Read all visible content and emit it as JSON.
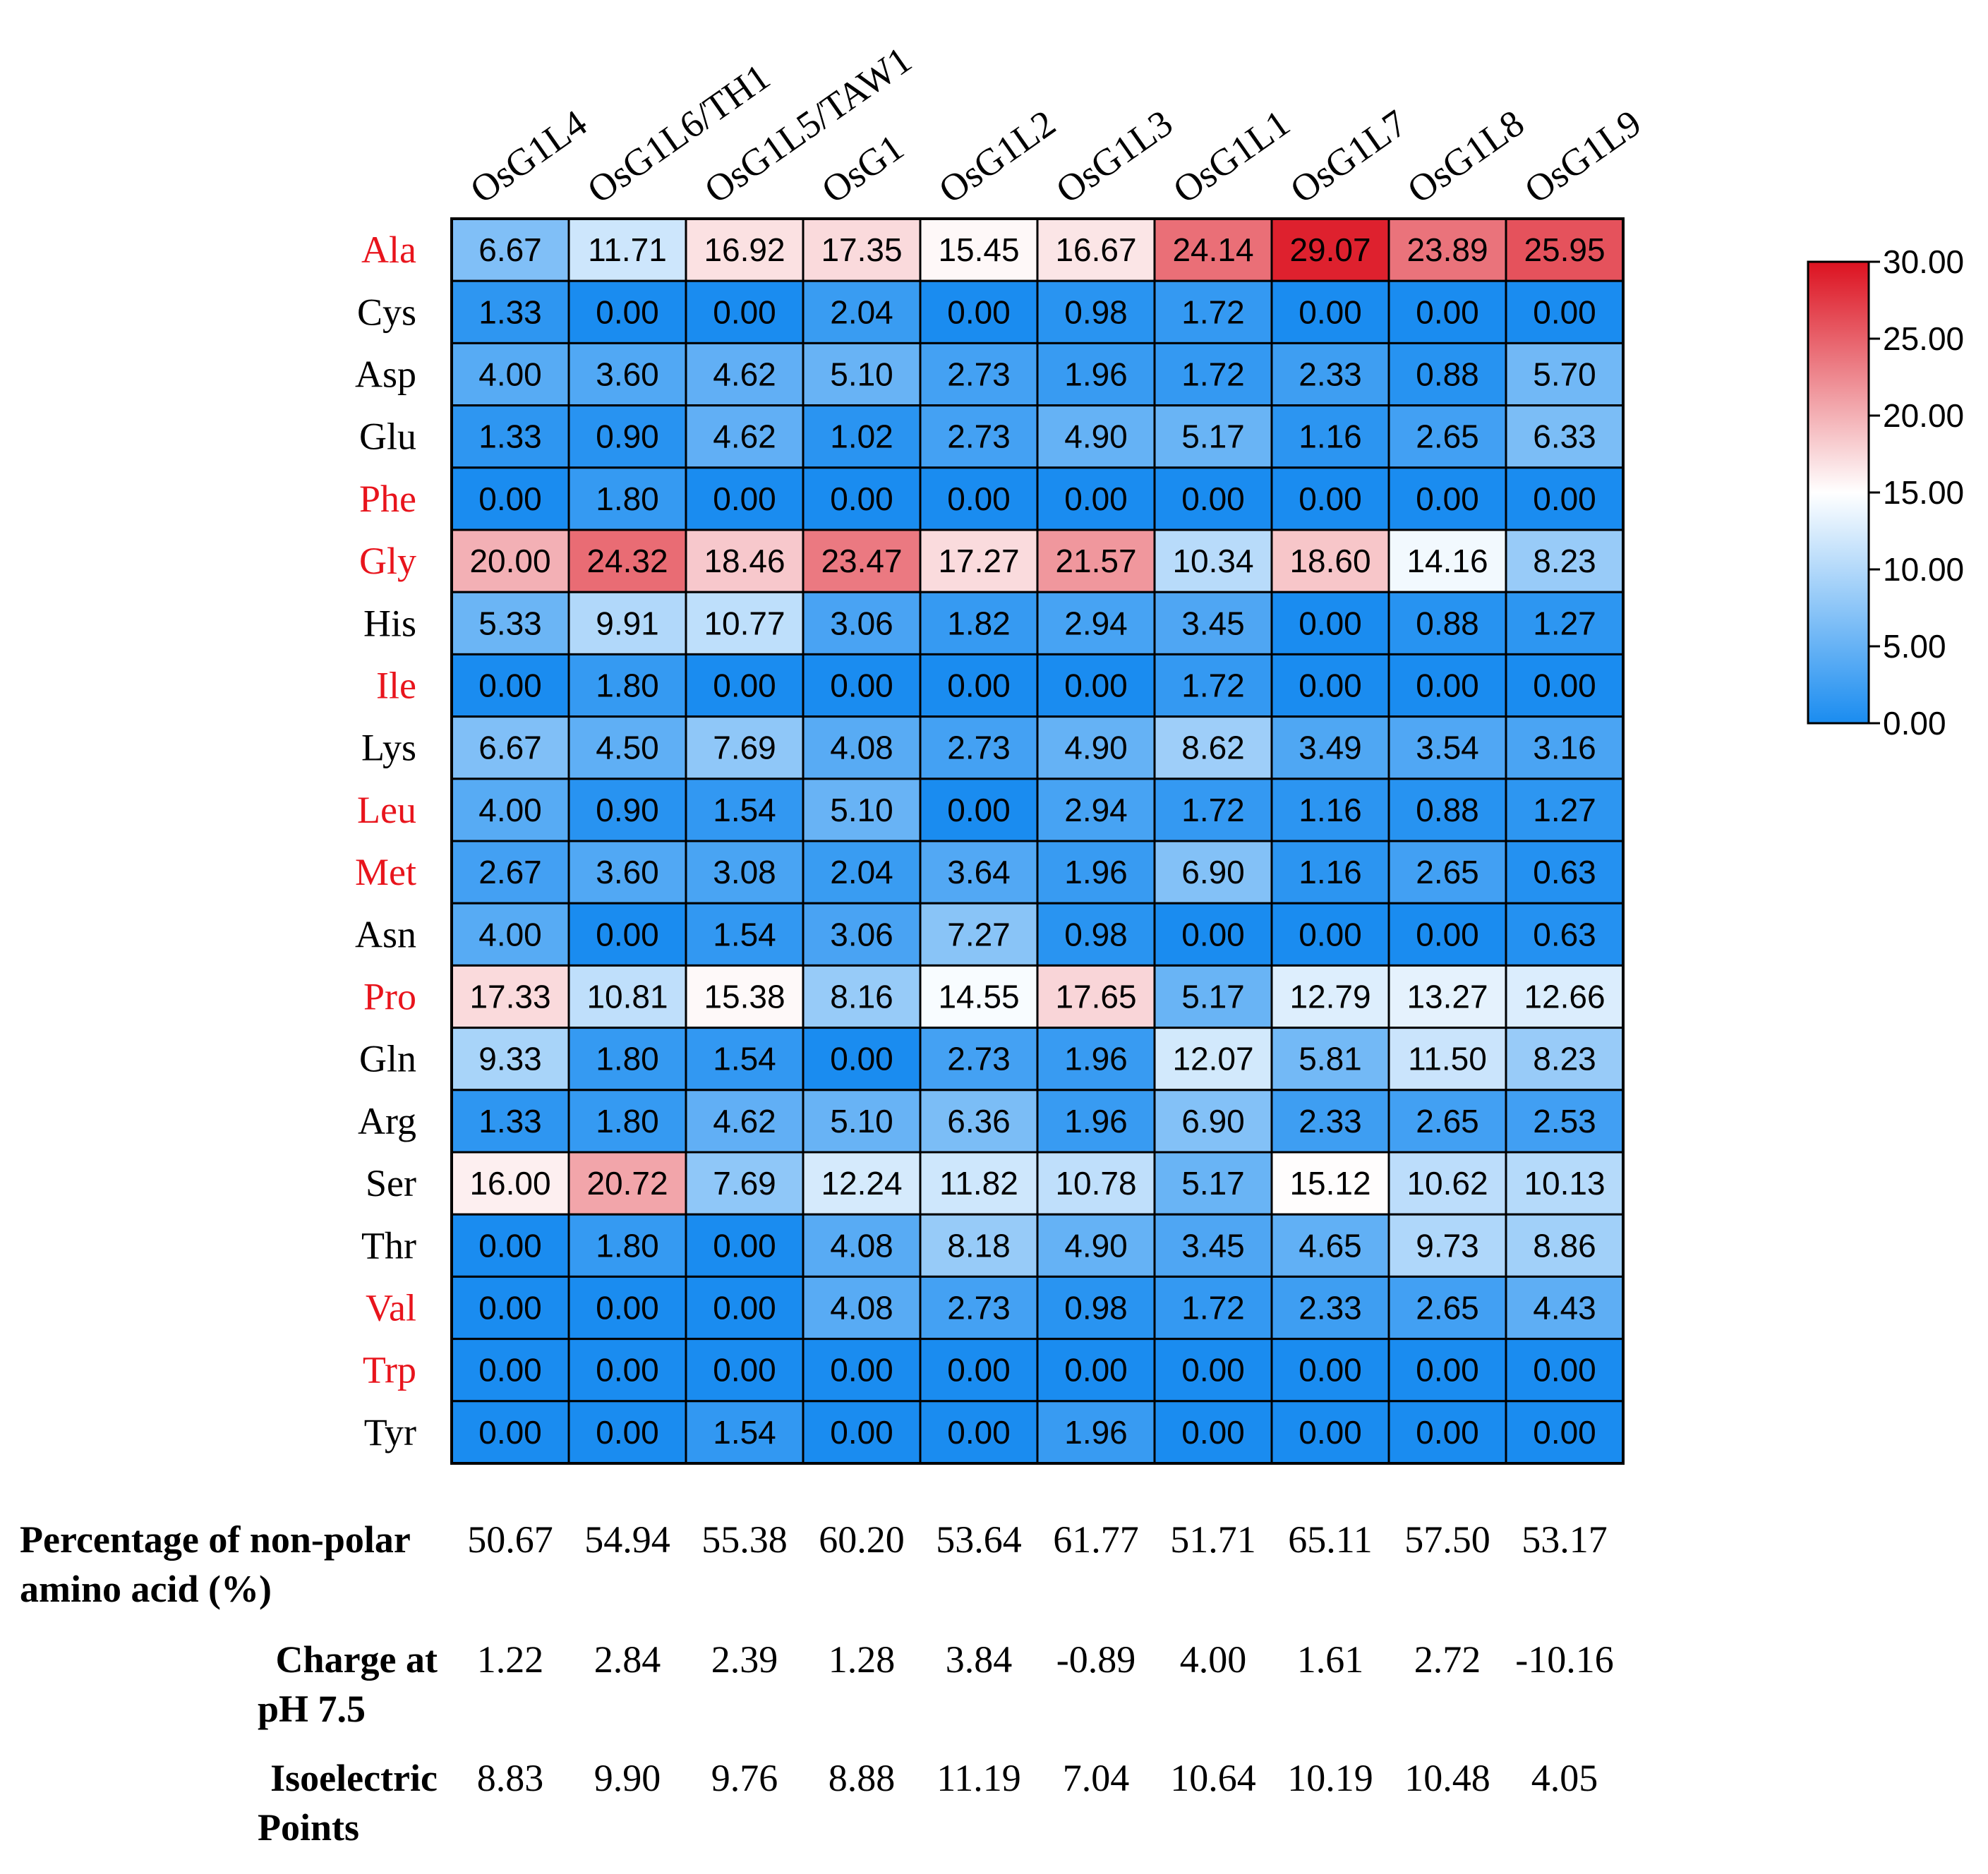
{
  "chart_data": {
    "type": "heatmap",
    "columns": [
      "OsG1L4",
      "OsG1L6/TH1",
      "OsG1L5/TAW1",
      "OsG1",
      "OsG1L2",
      "OsG1L3",
      "OsG1L1",
      "OsG1L7",
      "OsG1L8",
      "OsG1L9"
    ],
    "rows": [
      {
        "label": "Ala",
        "nonpolar": true,
        "values": [
          "6.67",
          "11.71",
          "16.92",
          "17.35",
          "15.45",
          "16.67",
          "24.14",
          "29.07",
          "23.89",
          "25.95"
        ]
      },
      {
        "label": "Cys",
        "nonpolar": false,
        "values": [
          "1.33",
          "0.00",
          "0.00",
          "2.04",
          "0.00",
          "0.98",
          "1.72",
          "0.00",
          "0.00",
          "0.00"
        ]
      },
      {
        "label": "Asp",
        "nonpolar": false,
        "values": [
          "4.00",
          "3.60",
          "4.62",
          "5.10",
          "2.73",
          "1.96",
          "1.72",
          "2.33",
          "0.88",
          "5.70"
        ]
      },
      {
        "label": "Glu",
        "nonpolar": false,
        "values": [
          "1.33",
          "0.90",
          "4.62",
          "1.02",
          "2.73",
          "4.90",
          "5.17",
          "1.16",
          "2.65",
          "6.33"
        ]
      },
      {
        "label": "Phe",
        "nonpolar": true,
        "values": [
          "0.00",
          "1.80",
          "0.00",
          "0.00",
          "0.00",
          "0.00",
          "0.00",
          "0.00",
          "0.00",
          "0.00"
        ]
      },
      {
        "label": "Gly",
        "nonpolar": true,
        "values": [
          "20.00",
          "24.32",
          "18.46",
          "23.47",
          "17.27",
          "21.57",
          "10.34",
          "18.60",
          "14.16",
          "8.23"
        ]
      },
      {
        "label": "His",
        "nonpolar": false,
        "values": [
          "5.33",
          "9.91",
          "10.77",
          "3.06",
          "1.82",
          "2.94",
          "3.45",
          "0.00",
          "0.88",
          "1.27"
        ]
      },
      {
        "label": "Ile",
        "nonpolar": true,
        "values": [
          "0.00",
          "1.80",
          "0.00",
          "0.00",
          "0.00",
          "0.00",
          "1.72",
          "0.00",
          "0.00",
          "0.00"
        ]
      },
      {
        "label": "Lys",
        "nonpolar": false,
        "values": [
          "6.67",
          "4.50",
          "7.69",
          "4.08",
          "2.73",
          "4.90",
          "8.62",
          "3.49",
          "3.54",
          "3.16"
        ]
      },
      {
        "label": "Leu",
        "nonpolar": true,
        "values": [
          "4.00",
          "0.90",
          "1.54",
          "5.10",
          "0.00",
          "2.94",
          "1.72",
          "1.16",
          "0.88",
          "1.27"
        ]
      },
      {
        "label": "Met",
        "nonpolar": true,
        "values": [
          "2.67",
          "3.60",
          "3.08",
          "2.04",
          "3.64",
          "1.96",
          "6.90",
          "1.16",
          "2.65",
          "0.63"
        ]
      },
      {
        "label": "Asn",
        "nonpolar": false,
        "values": [
          "4.00",
          "0.00",
          "1.54",
          "3.06",
          "7.27",
          "0.98",
          "0.00",
          "0.00",
          "0.00",
          "0.63"
        ]
      },
      {
        "label": "Pro",
        "nonpolar": true,
        "values": [
          "17.33",
          "10.81",
          "15.38",
          "8.16",
          "14.55",
          "17.65",
          "5.17",
          "12.79",
          "13.27",
          "12.66"
        ]
      },
      {
        "label": "Gln",
        "nonpolar": false,
        "values": [
          "9.33",
          "1.80",
          "1.54",
          "0.00",
          "2.73",
          "1.96",
          "12.07",
          "5.81",
          "11.50",
          "8.23"
        ]
      },
      {
        "label": "Arg",
        "nonpolar": false,
        "values": [
          "1.33",
          "1.80",
          "4.62",
          "5.10",
          "6.36",
          "1.96",
          "6.90",
          "2.33",
          "2.65",
          "2.53"
        ]
      },
      {
        "label": "Ser",
        "nonpolar": false,
        "values": [
          "16.00",
          "20.72",
          "7.69",
          "12.24",
          "11.82",
          "10.78",
          "5.17",
          "15.12",
          "10.62",
          "10.13"
        ]
      },
      {
        "label": "Thr",
        "nonpolar": false,
        "values": [
          "0.00",
          "1.80",
          "0.00",
          "4.08",
          "8.18",
          "4.90",
          "3.45",
          "4.65",
          "9.73",
          "8.86"
        ]
      },
      {
        "label": "Val",
        "nonpolar": true,
        "values": [
          "0.00",
          "0.00",
          "0.00",
          "4.08",
          "2.73",
          "0.98",
          "1.72",
          "2.33",
          "2.65",
          "4.43"
        ]
      },
      {
        "label": "Trp",
        "nonpolar": true,
        "values": [
          "0.00",
          "0.00",
          "0.00",
          "0.00",
          "0.00",
          "0.00",
          "0.00",
          "0.00",
          "0.00",
          "0.00"
        ]
      },
      {
        "label": "Tyr",
        "nonpolar": false,
        "values": [
          "0.00",
          "0.00",
          "1.54",
          "0.00",
          "0.00",
          "1.96",
          "0.00",
          "0.00",
          "0.00",
          "0.00"
        ]
      }
    ],
    "colorscale": {
      "min": 0,
      "mid": 15,
      "max": 30,
      "low_color": "#1a8cf0",
      "mid_color": "#ffffff",
      "high_color": "#dc1220",
      "ticks": [
        "0.00",
        "5.00",
        "10.00",
        "15.00",
        "20.00",
        "25.00",
        "30.00"
      ]
    },
    "summary": [
      {
        "label_lines": [
          "Percentage of non-polar",
          "amino acid (%)"
        ],
        "values": [
          "50.67",
          "54.94",
          "55.38",
          "60.20",
          "53.64",
          "61.77",
          "51.71",
          "65.11",
          "57.50",
          "53.17"
        ]
      },
      {
        "label_lines": [
          "Charge at",
          "pH 7.5"
        ],
        "values": [
          "1.22",
          "2.84",
          "2.39",
          "1.28",
          "3.84",
          "-0.89",
          "4.00",
          "1.61",
          "2.72",
          "-10.16"
        ]
      },
      {
        "label_lines": [
          "Isoelectric",
          "Points"
        ],
        "values": [
          "8.83",
          "9.90",
          "9.76",
          "8.88",
          "11.19",
          "7.04",
          "10.64",
          "10.19",
          "10.48",
          "4.05"
        ]
      }
    ],
    "nonpolar_label_color": "#e8141c",
    "polar_label_color": "#000000"
  }
}
